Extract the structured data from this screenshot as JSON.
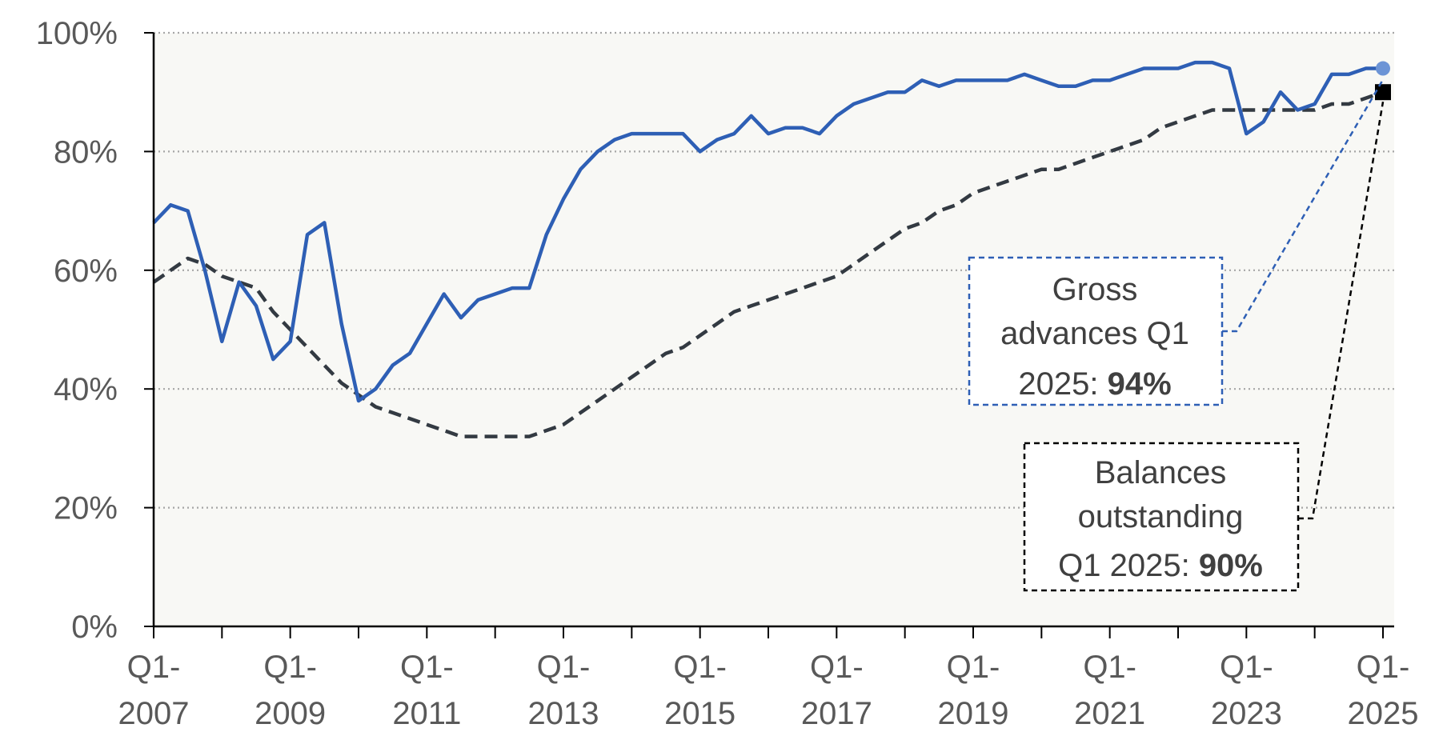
{
  "chart_data": {
    "type": "line",
    "title": "",
    "xlabel": "",
    "ylabel": "",
    "ylim": [
      0,
      100
    ],
    "yticks": [
      "0%",
      "20%",
      "40%",
      "60%",
      "80%",
      "100%"
    ],
    "xticks": [
      {
        "line1": "Q1-",
        "line2": "2007"
      },
      {
        "line1": "Q1-",
        "line2": "2009"
      },
      {
        "line1": "Q1-",
        "line2": "2011"
      },
      {
        "line1": "Q1-",
        "line2": "2013"
      },
      {
        "line1": "Q1-",
        "line2": "2015"
      },
      {
        "line1": "Q1-",
        "line2": "2017"
      },
      {
        "line1": "Q1-",
        "line2": "2019"
      },
      {
        "line1": "Q1-",
        "line2": "2021"
      },
      {
        "line1": "Q1-",
        "line2": "2023"
      },
      {
        "line1": "Q1-",
        "line2": "2025"
      }
    ],
    "grid": "horizontal dotted",
    "plot_background": "#f8f8f5",
    "series": [
      {
        "style": "solid",
        "color": "#2e5fb5",
        "marker_color": "#6c94d6",
        "values": [
          68,
          71,
          70,
          60,
          48,
          58,
          54,
          45,
          48,
          66,
          68,
          51,
          38,
          40,
          44,
          46,
          51,
          56,
          52,
          55,
          56,
          57,
          57,
          66,
          72,
          77,
          80,
          82,
          83,
          83,
          83,
          83,
          80,
          82,
          83,
          86,
          83,
          84,
          84,
          83,
          86,
          88,
          89,
          90,
          90,
          92,
          91,
          92,
          92,
          92,
          92,
          93,
          92,
          91,
          91,
          92,
          92,
          93,
          94,
          94,
          94,
          95,
          95,
          94,
          83,
          85,
          90,
          87,
          88,
          93,
          93,
          94,
          94
        ]
      },
      {
        "style": "dashed",
        "color": "#333a42",
        "marker_color": "#000000",
        "values": [
          58,
          60,
          62,
          61,
          59,
          58,
          57,
          53,
          50,
          47,
          44,
          41,
          39,
          37,
          36,
          35,
          34,
          33,
          32,
          32,
          32,
          32,
          32,
          33,
          34,
          36,
          38,
          40,
          42,
          44,
          46,
          47,
          49,
          51,
          53,
          54,
          55,
          56,
          57,
          58,
          59,
          61,
          63,
          65,
          67,
          68,
          70,
          71,
          73,
          74,
          75,
          76,
          77,
          77,
          78,
          79,
          80,
          81,
          82,
          84,
          85,
          86,
          87,
          87,
          87,
          87,
          87,
          87,
          87,
          88,
          88,
          89,
          90
        ]
      }
    ],
    "annotations": {
      "gross": {
        "text_lines": [
          "Gross",
          "advances Q1"
        ],
        "prefix": "2025: ",
        "value_label": "94%"
      },
      "balances": {
        "text_lines": [
          "Balances",
          "outstanding"
        ],
        "prefix": "Q1 2025: ",
        "value_label": "90%"
      }
    }
  }
}
